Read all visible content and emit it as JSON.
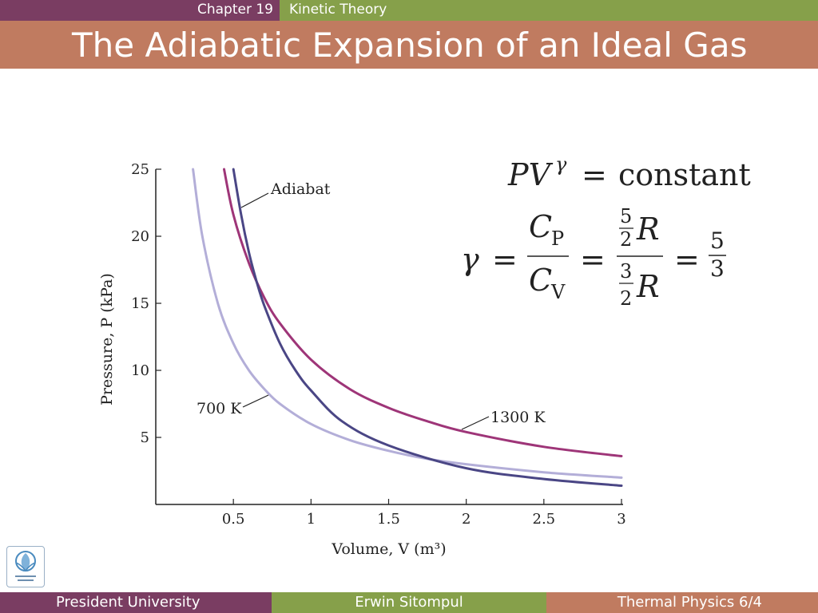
{
  "header": {
    "chapter": "Chapter 19",
    "chapter_title": "Kinetic Theory",
    "title": "The Adiabatic Expansion of an Ideal Gas"
  },
  "footer": {
    "left": "President University",
    "center": "Erwin Sitompul",
    "right": "Thermal Physics 6/4"
  },
  "colors": {
    "header_left": "#7a3d62",
    "header_right": "#86a04a",
    "title_bar": "#c07b60",
    "isotherm_700": "#b3aed8",
    "isotherm_1300": "#9e3578",
    "adiabat": "#4a4685"
  },
  "logo": {
    "icon": "president-university-logo-icon"
  },
  "equations": {
    "line1": {
      "lhs": "PV",
      "exp": "γ",
      "eq": "=",
      "rhs": "constant"
    },
    "line2": {
      "gamma": "γ",
      "eq": "=",
      "num": "C",
      "num_sub": "P",
      "den": "C",
      "den_sub": "V",
      "f_num": "5",
      "f_den": "2",
      "f_R": "R",
      "g_num": "3",
      "g_den": "2",
      "g_R": "R",
      "h_num": "5",
      "h_den": "3"
    }
  },
  "chart_data": {
    "type": "line",
    "xlabel": "Volume, V (m³)",
    "ylabel": "Pressure, P (kPa)",
    "xlim": [
      0,
      3
    ],
    "ylim": [
      0,
      25
    ],
    "xticks": [
      "0.5",
      "1",
      "1.5",
      "2",
      "2.5",
      "3"
    ],
    "yticks": [
      "5",
      "10",
      "15",
      "20",
      "25"
    ],
    "grid": false,
    "series": [
      {
        "name": "700 K",
        "key": "isotherm_700",
        "x": [
          0.24,
          0.3,
          0.4,
          0.5,
          0.6,
          0.7,
          0.8,
          1.0,
          1.25,
          1.5,
          1.75,
          2.0,
          2.5,
          3.0
        ],
        "y": [
          25,
          20,
          15,
          12,
          10,
          8.6,
          7.5,
          6.0,
          4.8,
          4.0,
          3.4,
          3.0,
          2.4,
          2.0
        ]
      },
      {
        "name": "1300 K",
        "key": "isotherm_1300",
        "x": [
          0.44,
          0.5,
          0.6,
          0.7,
          0.8,
          1.0,
          1.25,
          1.5,
          1.75,
          2.0,
          2.5,
          3.0
        ],
        "y": [
          25,
          21.6,
          18,
          15.4,
          13.5,
          10.8,
          8.6,
          7.2,
          6.2,
          5.4,
          4.3,
          3.6
        ]
      },
      {
        "name": "Adiabat",
        "key": "adiabat",
        "x": [
          0.5,
          0.55,
          0.6,
          0.65,
          0.7,
          0.8,
          0.9,
          1.0,
          1.2,
          1.5,
          2.0,
          2.5,
          3.0
        ],
        "y": [
          25,
          21.6,
          18.8,
          16.6,
          14.8,
          12.0,
          10.0,
          8.5,
          6.2,
          4.4,
          2.7,
          1.9,
          1.4
        ]
      }
    ],
    "annotations": [
      {
        "text": "Adiabat",
        "series": "Adiabat"
      },
      {
        "text": "700 K",
        "series": "700 K"
      },
      {
        "text": "1300 K",
        "series": "1300 K"
      }
    ]
  }
}
